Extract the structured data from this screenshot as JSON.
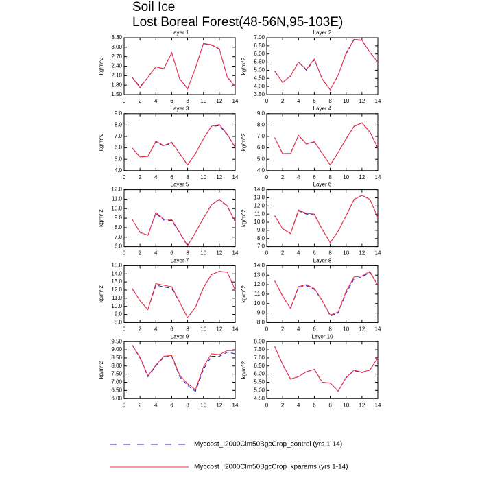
{
  "title": "Soil Ice",
  "subtitle": "Lost Boreal Forest(48-56N,95-103E)",
  "chart_data": [
    {
      "type": "line",
      "title": "Layer 1",
      "ylabel": "kg/m^2",
      "x": [
        1,
        2,
        3,
        4,
        5,
        6,
        7,
        8,
        9,
        10,
        11,
        12,
        13,
        14
      ],
      "xlim": [
        0,
        14
      ],
      "xticks": [
        0,
        2,
        4,
        6,
        8,
        10,
        12,
        14
      ],
      "ylim": [
        1.5,
        3.3
      ],
      "yticks": [
        {
          "value": 1.5,
          "label": "1.50"
        },
        {
          "value": 1.8,
          "label": "1.80"
        },
        {
          "value": 2.1,
          "label": "2.10"
        },
        {
          "value": 2.4,
          "label": "2.40"
        },
        {
          "value": 2.7,
          "label": "2.70"
        },
        {
          "value": 3,
          "label": "3.00"
        },
        {
          "value": 3.3,
          "label": "3.30"
        }
      ],
      "series": [
        {
          "name": "Myccost_I2000Clm50BgcCrop_control (yrs 1-14)",
          "color": "#2222cc",
          "style": "dashed",
          "values": [
            2.05,
            1.75,
            2.05,
            2.38,
            2.32,
            2.82,
            2.0,
            1.69,
            2.35,
            3.11,
            3.07,
            2.94,
            2.06,
            1.76
          ]
        },
        {
          "name": "Myccost_I2000Clm50BgcCrop_kparams (yrs 1-14)",
          "color": "#ee3344",
          "style": "solid",
          "values": [
            2.05,
            1.72,
            2.05,
            2.38,
            2.32,
            2.82,
            2.0,
            1.68,
            2.35,
            3.12,
            3.08,
            2.95,
            2.05,
            1.75
          ]
        }
      ]
    },
    {
      "type": "line",
      "title": "Layer 2",
      "ylabel": "kg/m^2",
      "x": [
        1,
        2,
        3,
        4,
        5,
        6,
        7,
        8,
        9,
        10,
        11,
        12,
        13,
        14
      ],
      "xlim": [
        0,
        14
      ],
      "xticks": [
        0,
        2,
        4,
        6,
        8,
        10,
        12,
        14
      ],
      "ylim": [
        3.5,
        7
      ],
      "yticks": [
        {
          "value": 3.5,
          "label": "3.50"
        },
        {
          "value": 4,
          "label": "4.00"
        },
        {
          "value": 4.5,
          "label": "4.50"
        },
        {
          "value": 5,
          "label": "5.00"
        },
        {
          "value": 5.5,
          "label": "5.50"
        },
        {
          "value": 6,
          "label": "6.00"
        },
        {
          "value": 6.5,
          "label": "6.50"
        },
        {
          "value": 7,
          "label": "7.00"
        }
      ],
      "series": [
        {
          "color": "#2222cc",
          "style": "dashed",
          "values": [
            4.95,
            4.25,
            4.65,
            5.5,
            5.0,
            5.65,
            4.45,
            3.8,
            4.7,
            6.0,
            6.88,
            6.83,
            6.1,
            5.5
          ]
        },
        {
          "color": "#ee3344",
          "style": "solid",
          "values": [
            4.95,
            4.25,
            4.65,
            5.5,
            5.05,
            5.7,
            4.45,
            3.8,
            4.7,
            6.05,
            6.9,
            6.85,
            6.1,
            5.5
          ]
        }
      ]
    },
    {
      "type": "line",
      "title": "Layer 3",
      "ylabel": "kg/m^2",
      "x": [
        1,
        2,
        3,
        4,
        5,
        6,
        7,
        8,
        9,
        10,
        11,
        12,
        13,
        14
      ],
      "xlim": [
        0,
        14
      ],
      "xticks": [
        0,
        2,
        4,
        6,
        8,
        10,
        12,
        14
      ],
      "ylim": [
        4,
        9
      ],
      "yticks": [
        {
          "value": 4,
          "label": "4.0"
        },
        {
          "value": 5,
          "label": "5.0"
        },
        {
          "value": 6,
          "label": "6.0"
        },
        {
          "value": 7,
          "label": "7.0"
        },
        {
          "value": 8,
          "label": "8.0"
        },
        {
          "value": 9,
          "label": "9.0"
        }
      ],
      "series": [
        {
          "color": "#2222cc",
          "style": "dashed",
          "values": [
            6.0,
            5.2,
            5.25,
            6.55,
            6.15,
            6.45,
            5.5,
            4.5,
            5.5,
            6.8,
            7.88,
            7.95,
            7.15,
            6.05
          ]
        },
        {
          "color": "#ee3344",
          "style": "solid",
          "values": [
            6.0,
            5.2,
            5.25,
            6.6,
            6.2,
            6.5,
            5.5,
            4.5,
            5.5,
            6.8,
            7.9,
            8.05,
            7.2,
            6.05
          ]
        }
      ]
    },
    {
      "type": "line",
      "title": "Layer 4",
      "ylabel": "kg/m^2",
      "x": [
        1,
        2,
        3,
        4,
        5,
        6,
        7,
        8,
        9,
        10,
        11,
        12,
        13,
        14
      ],
      "xlim": [
        0,
        14
      ],
      "xticks": [
        0,
        2,
        4,
        6,
        8,
        10,
        12,
        14
      ],
      "ylim": [
        4,
        9
      ],
      "yticks": [
        {
          "value": 4,
          "label": "4.0"
        },
        {
          "value": 5,
          "label": "5.0"
        },
        {
          "value": 6,
          "label": "6.0"
        },
        {
          "value": 7,
          "label": "7.0"
        },
        {
          "value": 8,
          "label": "8.0"
        },
        {
          "value": 9,
          "label": "9.0"
        }
      ],
      "series": [
        {
          "color": "#2222cc",
          "style": "dashed",
          "values": [
            6.9,
            5.5,
            5.5,
            7.08,
            6.33,
            6.53,
            5.5,
            4.5,
            5.6,
            6.8,
            7.88,
            8.18,
            7.38,
            6.0
          ]
        },
        {
          "color": "#ee3344",
          "style": "solid",
          "values": [
            6.9,
            5.5,
            5.5,
            7.1,
            6.35,
            6.55,
            5.5,
            4.5,
            5.6,
            6.8,
            7.9,
            8.2,
            7.4,
            6.0
          ]
        }
      ]
    },
    {
      "type": "line",
      "title": "Layer 5",
      "ylabel": "kg/m^2",
      "x": [
        1,
        2,
        3,
        4,
        5,
        6,
        7,
        8,
        9,
        10,
        11,
        12,
        13,
        14
      ],
      "xlim": [
        0,
        14
      ],
      "xticks": [
        0,
        2,
        4,
        6,
        8,
        10,
        12,
        14
      ],
      "ylim": [
        6,
        12
      ],
      "yticks": [
        {
          "value": 6,
          "label": "6.0"
        },
        {
          "value": 7,
          "label": "7.0"
        },
        {
          "value": 8,
          "label": "8.0"
        },
        {
          "value": 9,
          "label": "9.0"
        },
        {
          "value": 10,
          "label": "10.0"
        },
        {
          "value": 11,
          "label": "11.0"
        },
        {
          "value": 12,
          "label": "12.0"
        }
      ],
      "series": [
        {
          "color": "#2222cc",
          "style": "dashed",
          "values": [
            8.9,
            7.5,
            7.2,
            9.5,
            8.8,
            8.75,
            7.45,
            6.05,
            7.5,
            9.0,
            10.4,
            10.95,
            10.25,
            8.6
          ]
        },
        {
          "color": "#ee3344",
          "style": "solid",
          "values": [
            8.9,
            7.5,
            7.2,
            9.6,
            8.9,
            8.85,
            7.5,
            6.1,
            7.5,
            9.0,
            10.4,
            11.0,
            10.3,
            8.6
          ]
        }
      ]
    },
    {
      "type": "line",
      "title": "Layer 6",
      "ylabel": "kg/m^2",
      "x": [
        1,
        2,
        3,
        4,
        5,
        6,
        7,
        8,
        9,
        10,
        11,
        12,
        13,
        14
      ],
      "xlim": [
        0,
        14
      ],
      "xticks": [
        0,
        2,
        4,
        6,
        8,
        10,
        12,
        14
      ],
      "ylim": [
        7,
        14
      ],
      "yticks": [
        {
          "value": 7,
          "label": "7.0"
        },
        {
          "value": 8,
          "label": "8.0"
        },
        {
          "value": 9,
          "label": "9.0"
        },
        {
          "value": 10,
          "label": "10.0"
        },
        {
          "value": 11,
          "label": "11.0"
        },
        {
          "value": 12,
          "label": "12.0"
        },
        {
          "value": 13,
          "label": "13.0"
        },
        {
          "value": 14,
          "label": "14.0"
        }
      ],
      "series": [
        {
          "color": "#2222cc",
          "style": "dashed",
          "values": [
            10.8,
            9.2,
            8.6,
            11.4,
            11.0,
            10.9,
            9.1,
            7.5,
            8.9,
            10.8,
            12.8,
            13.3,
            12.8,
            10.6
          ]
        },
        {
          "color": "#ee3344",
          "style": "solid",
          "values": [
            10.8,
            9.2,
            8.6,
            11.5,
            11.1,
            11.0,
            9.1,
            7.5,
            8.9,
            10.8,
            12.8,
            13.3,
            12.8,
            10.6
          ]
        }
      ]
    },
    {
      "type": "line",
      "title": "Layer 7",
      "ylabel": "kg/m^2",
      "x": [
        1,
        2,
        3,
        4,
        5,
        6,
        7,
        8,
        9,
        10,
        11,
        12,
        13,
        14
      ],
      "xlim": [
        0,
        14
      ],
      "xticks": [
        0,
        2,
        4,
        6,
        8,
        10,
        12,
        14
      ],
      "ylim": [
        8,
        15
      ],
      "yticks": [
        {
          "value": 8,
          "label": "8.0"
        },
        {
          "value": 9,
          "label": "9.0"
        },
        {
          "value": 10,
          "label": "10.0"
        },
        {
          "value": 11,
          "label": "11.0"
        },
        {
          "value": 12,
          "label": "12.0"
        },
        {
          "value": 13,
          "label": "13.0"
        },
        {
          "value": 14,
          "label": "14.0"
        },
        {
          "value": 15,
          "label": "15.0"
        }
      ],
      "series": [
        {
          "color": "#2222cc",
          "style": "dashed",
          "values": [
            12.2,
            10.7,
            9.6,
            12.6,
            12.4,
            12.2,
            10.5,
            8.6,
            9.9,
            12.3,
            13.9,
            14.3,
            14.2,
            12.0
          ]
        },
        {
          "color": "#ee3344",
          "style": "solid",
          "values": [
            12.2,
            10.7,
            9.6,
            12.8,
            12.6,
            12.4,
            10.5,
            8.6,
            9.9,
            12.3,
            13.9,
            14.3,
            14.2,
            12.0
          ]
        }
      ]
    },
    {
      "type": "line",
      "title": "Layer 8",
      "ylabel": "kg/m^2",
      "x": [
        1,
        2,
        3,
        4,
        5,
        6,
        7,
        8,
        9,
        10,
        11,
        12,
        13,
        14
      ],
      "xlim": [
        0,
        14
      ],
      "xticks": [
        0,
        2,
        4,
        6,
        8,
        10,
        12,
        14
      ],
      "ylim": [
        8,
        14
      ],
      "yticks": [
        {
          "value": 8,
          "label": "8.0"
        },
        {
          "value": 9,
          "label": "9.0"
        },
        {
          "value": 10,
          "label": "10.0"
        },
        {
          "value": 11,
          "label": "11.0"
        },
        {
          "value": 12,
          "label": "12.0"
        },
        {
          "value": 13,
          "label": "13.0"
        },
        {
          "value": 14,
          "label": "14.0"
        }
      ],
      "series": [
        {
          "color": "#2222cc",
          "style": "dashed",
          "values": [
            12.4,
            10.8,
            9.5,
            11.7,
            11.9,
            11.5,
            10.3,
            8.7,
            9.0,
            11.1,
            12.6,
            12.8,
            13.3,
            11.9
          ]
        },
        {
          "color": "#ee3344",
          "style": "solid",
          "values": [
            12.4,
            10.8,
            9.5,
            11.8,
            12.0,
            11.6,
            10.3,
            8.8,
            9.1,
            11.3,
            12.8,
            12.9,
            13.4,
            11.9
          ]
        }
      ]
    },
    {
      "type": "line",
      "title": "Layer 9",
      "ylabel": "kg/m^2",
      "x": [
        1,
        2,
        3,
        4,
        5,
        6,
        7,
        8,
        9,
        10,
        11,
        12,
        13,
        14
      ],
      "xlim": [
        0,
        14
      ],
      "xticks": [
        0,
        2,
        4,
        6,
        8,
        10,
        12,
        14
      ],
      "ylim": [
        6,
        9.5
      ],
      "yticks": [
        {
          "value": 6,
          "label": "6.00"
        },
        {
          "value": 6.5,
          "label": "6.50"
        },
        {
          "value": 7,
          "label": "7.00"
        },
        {
          "value": 7.5,
          "label": "7.50"
        },
        {
          "value": 8,
          "label": "8.00"
        },
        {
          "value": 8.5,
          "label": "8.50"
        },
        {
          "value": 9,
          "label": "9.00"
        },
        {
          "value": 9.5,
          "label": "9.50"
        }
      ],
      "series": [
        {
          "color": "#2222cc",
          "style": "dashed",
          "values": [
            9.3,
            8.5,
            7.35,
            8.0,
            8.55,
            8.6,
            7.35,
            6.8,
            6.45,
            7.8,
            8.6,
            8.6,
            8.85,
            8.75
          ]
        },
        {
          "color": "#ee3344",
          "style": "solid",
          "values": [
            9.3,
            8.55,
            7.4,
            8.05,
            8.6,
            8.65,
            7.45,
            6.9,
            6.55,
            7.95,
            8.75,
            8.7,
            8.95,
            8.95
          ]
        }
      ]
    },
    {
      "type": "line",
      "title": "Layer 10",
      "ylabel": "kg/m^2",
      "x": [
        1,
        2,
        3,
        4,
        5,
        6,
        7,
        8,
        9,
        10,
        11,
        12,
        13,
        14
      ],
      "xlim": [
        0,
        14
      ],
      "xticks": [
        0,
        2,
        4,
        6,
        8,
        10,
        12,
        14
      ],
      "ylim": [
        4.5,
        8
      ],
      "yticks": [
        {
          "value": 4.5,
          "label": "4.50"
        },
        {
          "value": 5,
          "label": "5.00"
        },
        {
          "value": 5.5,
          "label": "5.50"
        },
        {
          "value": 6,
          "label": "6.00"
        },
        {
          "value": 6.5,
          "label": "6.50"
        },
        {
          "value": 7,
          "label": "7.00"
        },
        {
          "value": 7.5,
          "label": "7.50"
        },
        {
          "value": 8,
          "label": "8.00"
        }
      ],
      "series": [
        {
          "color": "#2222cc",
          "style": "dashed",
          "values": [
            7.7,
            6.6,
            5.7,
            5.85,
            6.15,
            6.28,
            5.5,
            5.45,
            4.95,
            5.78,
            6.22,
            6.1,
            6.25,
            7.0
          ]
        },
        {
          "color": "#ee3344",
          "style": "solid",
          "values": [
            7.7,
            6.6,
            5.7,
            5.85,
            6.15,
            6.3,
            5.5,
            5.45,
            4.95,
            5.8,
            6.25,
            6.12,
            6.25,
            7.0
          ]
        }
      ]
    }
  ]
}
